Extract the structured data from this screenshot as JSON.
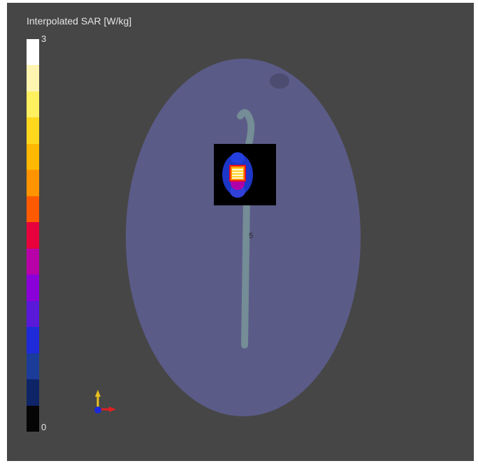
{
  "legend": {
    "title": "Interpolated SAR [W/kg]",
    "max_label": "3",
    "min_label": "0",
    "colors": [
      "#ffffff",
      "#fff5b0",
      "#fff060",
      "#ffd81e",
      "#ffb800",
      "#ff9400",
      "#ff5a00",
      "#e8003c",
      "#b800a8",
      "#8a00d8",
      "#5a18d8",
      "#1f2ad8",
      "#1c3c9a",
      "#0d2466",
      "#050505"
    ]
  },
  "scene": {
    "axis_marker": "5",
    "colors": {
      "background": "#464646",
      "phantom": "#5f5f94",
      "trace": "#7a9a9a",
      "probe_window": "#000000"
    }
  },
  "icons": {
    "axes": "xyz-axes-icon"
  }
}
